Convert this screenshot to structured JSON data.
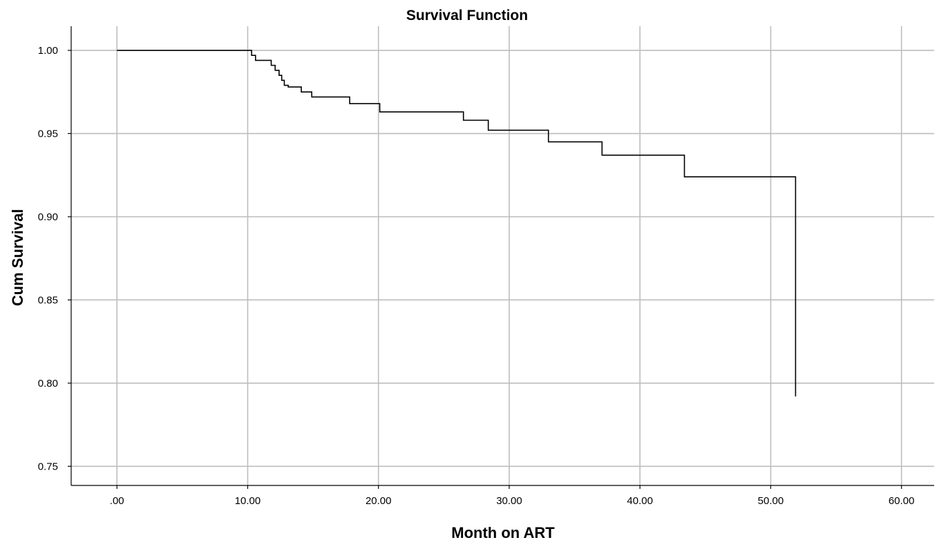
{
  "chart_data": {
    "type": "line",
    "title": "Survival Function",
    "xlabel": "Month on ART",
    "ylabel": "Cum Survival",
    "xlim": [
      -3.5,
      62.5
    ],
    "ylim": [
      0.7385,
      1.0145
    ],
    "x_ticks": [
      0,
      10,
      20,
      30,
      40,
      50,
      60
    ],
    "x_tick_labels": [
      ".00",
      "10.00",
      "20.00",
      "30.00",
      "40.00",
      "50.00",
      "60.00"
    ],
    "y_ticks": [
      0.75,
      0.8,
      0.85,
      0.9,
      0.95,
      1.0
    ],
    "y_tick_labels": [
      "0.75",
      "0.80",
      "0.85",
      "0.90",
      "0.95",
      "1.00"
    ],
    "grid": true,
    "line_style": "step",
    "series": [
      {
        "x": [
          0,
          10.3,
          10.6,
          10.8,
          11.8,
          12.1,
          12.4,
          12.6,
          12.8,
          13.1,
          14.1,
          14.9,
          17.8,
          20.1,
          26.5,
          28.4,
          33.0,
          37.1,
          43.4,
          51.9,
          51.9
        ],
        "y": [
          1.0,
          0.997,
          0.994,
          0.994,
          0.991,
          0.988,
          0.985,
          0.982,
          0.979,
          0.978,
          0.975,
          0.972,
          0.968,
          0.963,
          0.958,
          0.952,
          0.945,
          0.937,
          0.924,
          0.924,
          0.792
        ]
      }
    ]
  }
}
